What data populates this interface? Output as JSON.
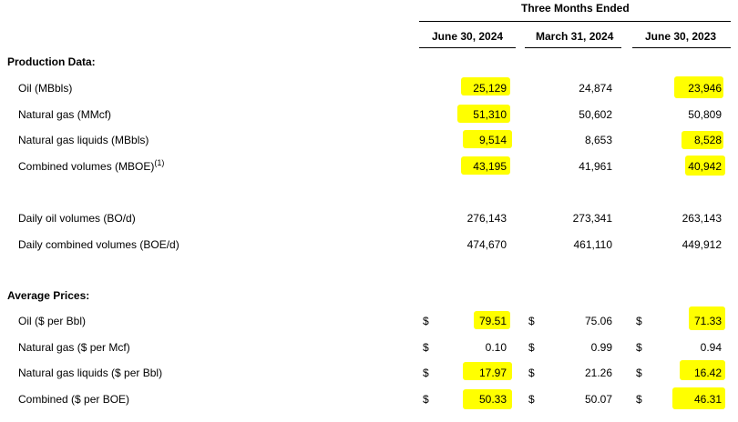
{
  "header": {
    "group_title": "Three Months Ended",
    "columns": [
      "June 30, 2024",
      "March 31, 2024",
      "June 30, 2023"
    ]
  },
  "production": {
    "section_title": "Production Data:",
    "rows": [
      {
        "label": "Oil (MBbls)",
        "values": [
          "25,129",
          "24,874",
          "23,946"
        ]
      },
      {
        "label": "Natural gas (MMcf)",
        "values": [
          "51,310",
          "50,602",
          "50,809"
        ]
      },
      {
        "label": "Natural gas liquids (MBbls)",
        "values": [
          "9,514",
          "8,653",
          "8,528"
        ]
      },
      {
        "label": "Combined volumes (MBOE)",
        "label_sup": "(1)",
        "values": [
          "43,195",
          "41,961",
          "40,942"
        ]
      }
    ],
    "daily_rows": [
      {
        "label": "Daily oil volumes (BO/d)",
        "values": [
          "276,143",
          "273,341",
          "263,143"
        ]
      },
      {
        "label": "Daily combined volumes (BOE/d)",
        "values": [
          "474,670",
          "461,110",
          "449,912"
        ]
      }
    ]
  },
  "prices": {
    "section_title": "Average Prices:",
    "currency_symbol": "$",
    "rows": [
      {
        "label": "Oil ($ per Bbl)",
        "values": [
          "79.51",
          "75.06",
          "71.33"
        ]
      },
      {
        "label": "Natural gas ($ per Mcf)",
        "values": [
          "0.10",
          "0.99",
          "0.94"
        ]
      },
      {
        "label": "Natural gas liquids ($ per Bbl)",
        "values": [
          "17.97",
          "21.26",
          "16.42"
        ]
      },
      {
        "label": "Combined ($ per BOE)",
        "values": [
          "50.33",
          "50.07",
          "46.31"
        ]
      }
    ]
  },
  "highlight_color": "#ffff00"
}
